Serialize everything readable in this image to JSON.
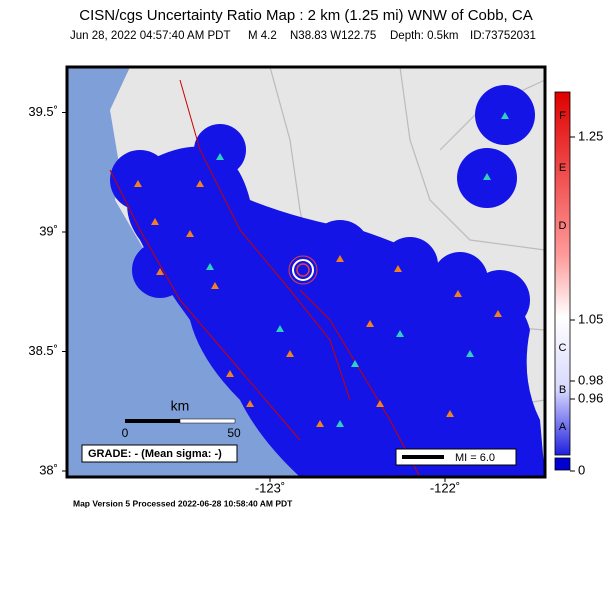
{
  "header": {
    "title": "CISN/cgs Uncertainty Ratio Map : 2 km (1.25 mi) WNW of Cobb, CA",
    "time": "Jun 28, 2022 04:57:40 AM PDT",
    "magnitude": "M 4.2",
    "location": "N38.83 W122.75",
    "depth": "Depth: 0.5km",
    "id": "ID:73752031"
  },
  "axes": {
    "lat_ticks": [
      {
        "value": 39.5,
        "label": "39.5˚"
      },
      {
        "value": 39,
        "label": "39˚"
      },
      {
        "value": 38.5,
        "label": "38.5˚"
      },
      {
        "value": 38,
        "label": "38˚"
      }
    ],
    "lon_ticks": [
      {
        "value": -123,
        "label": "-123˚"
      },
      {
        "value": -122,
        "label": "-122˚"
      }
    ]
  },
  "scale_bar": {
    "unit": "km",
    "start": 0,
    "end": 50
  },
  "grade": "GRADE: - (Mean sigma: -)",
  "legend": "MI = 6.0",
  "color_bar": {
    "grades": [
      "F",
      "E",
      "D",
      "C",
      "B",
      "A"
    ],
    "ticks": [
      1.25,
      1.05,
      0.98,
      0.96,
      0
    ]
  },
  "footer": "Map Version 5 Processed 2022-06-28 10:58:40 AM PDT"
}
